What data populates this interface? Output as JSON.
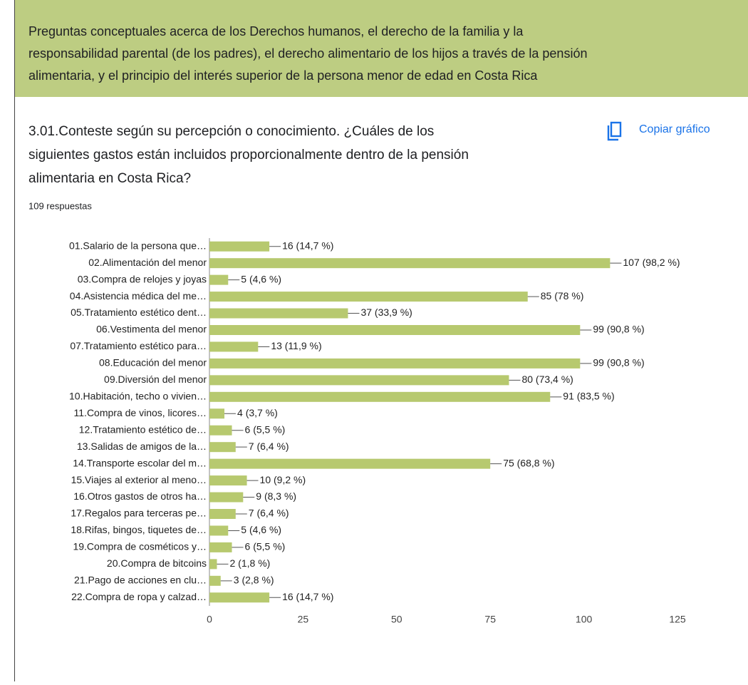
{
  "header": {
    "lines": [
      "Preguntas conceptuales acerca de los Derechos humanos, el derecho de la familia y la",
      "responsabilidad parental (de los padres), el derecho alimentario de los hijos a través de la pensión",
      "alimentaria, y el principio del interés superior de la persona menor de edad en Costa Rica"
    ]
  },
  "question": {
    "lines": [
      "3.01.Conteste según su percepción o conocimiento. ¿Cuáles de los",
      "siguientes gastos están incluidos proporcionalmente dentro de la pensión",
      "alimentaria en Costa Rica?"
    ],
    "responses": "109 respuestas",
    "copy_button": "Copiar gráfico"
  },
  "chart_data": {
    "type": "barh",
    "color": "#b7c96f",
    "categories": [
      "01.Salario de la persona que…",
      "02.Alimentación del menor",
      "03.Compra de relojes y joyas",
      "04.Asistencia médica del me…",
      "05.Tratamiento estético dent…",
      "06.Vestimenta del menor",
      "07.Tratamiento estético para…",
      "08.Educación del menor",
      "09.Diversión del menor",
      "10.Habitación, techo o vivien…",
      "11.Compra de vinos, licores…",
      "12.Tratamiento estético de…",
      "13.Salidas de amigos de la…",
      "14.Transporte escolar del m…",
      "15.Viajes al exterior al meno…",
      "16.Otros gastos de otros ha…",
      "17.Regalos para terceras pe…",
      "18.Rifas, bingos, tiquetes de…",
      "19.Compra de cosméticos y…",
      "20.Compra de bitcoins",
      "21.Pago de acciones en clu…",
      "22.Compra de ropa y calzad…"
    ],
    "values": [
      16,
      107,
      5,
      85,
      37,
      99,
      13,
      99,
      80,
      91,
      4,
      6,
      7,
      75,
      10,
      9,
      7,
      5,
      6,
      2,
      3,
      16
    ],
    "value_labels": [
      "16 (14,7 %)",
      "107 (98,2 %)",
      "5 (4,6 %)",
      "85 (78 %)",
      "37 (33,9 %)",
      "99 (90,8 %)",
      "13 (11,9 %)",
      "99 (90,8 %)",
      "80 (73,4 %)",
      "91 (83,5 %)",
      "4 (3,7 %)",
      "6 (5,5 %)",
      "7 (6,4 %)",
      "75 (68,8 %)",
      "10 (9,2 %)",
      "9 (8,3 %)",
      "7 (6,4 %)",
      "5 (4,6 %)",
      "6 (5,5 %)",
      "2 (1,8 %)",
      "3 (2,8 %)",
      "16 (14,7 %)"
    ],
    "xlim": [
      0,
      125
    ],
    "xticks": [
      0,
      25,
      50,
      75,
      100,
      125
    ],
    "grid": false
  }
}
